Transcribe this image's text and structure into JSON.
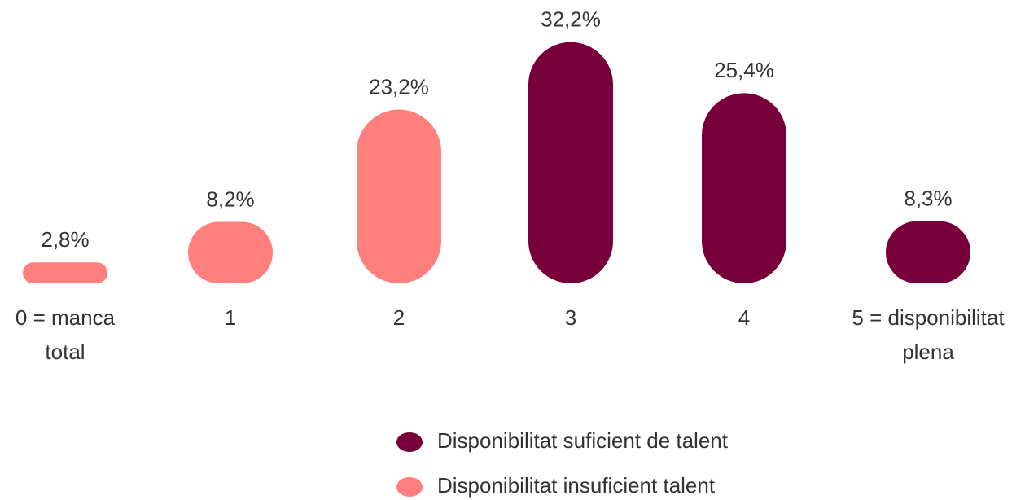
{
  "chart_data": {
    "type": "bar",
    "categories": [
      "0 = manca total",
      "1",
      "2",
      "3",
      "4",
      "5 = disponibilitat plena"
    ],
    "series": [
      {
        "name": "Disponibilitat suficient de talent",
        "color": "#77003a",
        "values": [
          null,
          null,
          null,
          32.2,
          25.4,
          8.3
        ],
        "value_labels": [
          null,
          null,
          null,
          "32,2%",
          "25,4%",
          "8,3%"
        ]
      },
      {
        "name": "Disponibilitat insuficient talent",
        "color": "#ff7f7f",
        "values": [
          2.8,
          8.2,
          23.2,
          null,
          null,
          null
        ],
        "value_labels": [
          "2,8%",
          "8,2%",
          "23,2%",
          null,
          null,
          null
        ]
      }
    ]
  }
}
